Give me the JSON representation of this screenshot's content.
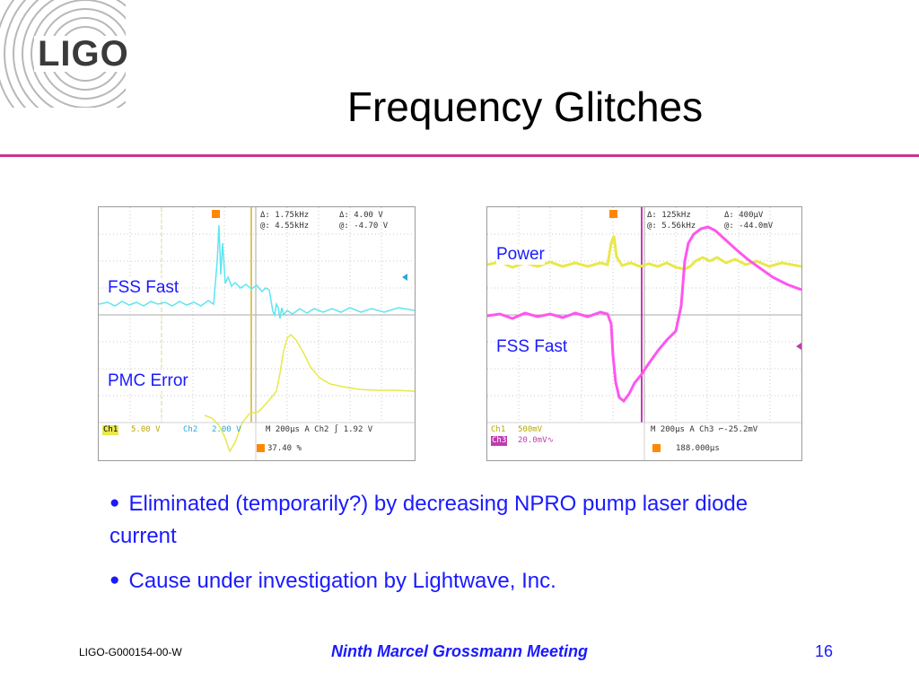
{
  "logo": {
    "text": "LIGO",
    "icon": "ligo-arcs-logo"
  },
  "title": "Frequency Glitches",
  "colors": {
    "title_rule": "#cc3388",
    "body_text": "#1a1aff",
    "ch1": "#e8e84a",
    "ch2": "#5ee6f0",
    "ch3": "#ff55ee"
  },
  "scope_left": {
    "labels": {
      "top_trace": "FSS Fast",
      "bottom_trace": "PMC Error"
    },
    "readout": {
      "r1a": "Δ:  1.75kHz",
      "r1b": "Δ:   4.00 V",
      "r2a": "@:  4.55kHz",
      "r2b": "@:  -4.70 V"
    },
    "status": {
      "ch1_tag": "Ch1",
      "ch1_scale": "5.00 V",
      "ch2_tag": "Ch2",
      "ch2_scale": "2.00 V",
      "timebase": "M 200µs  A  Ch2  ∫    1.92 V",
      "trigger_pos": "37.40 %"
    }
  },
  "scope_right": {
    "labels": {
      "top_trace": "Power",
      "bottom_trace": "FSS Fast"
    },
    "readout": {
      "r1a": "Δ:  125kHz",
      "r1b": "Δ:   400µV",
      "r2a": "@:  5.56kHz",
      "r2b": "@:  -44.0mV"
    },
    "status": {
      "ch1_tag": "Ch1",
      "ch1_scale": "500mV",
      "ch3_tag": "Ch3",
      "ch3_scale": "20.0mV∿",
      "timebase": "M 200µs  A  Ch3  ⌐-25.2mV",
      "trigger_pos": "188.000µs"
    }
  },
  "bullets": [
    "Eliminated (temporarily?) by decreasing NPRO pump laser diode current",
    "Cause under investigation by Lightwave, Inc."
  ],
  "footer": {
    "doc_id": "LIGO-G000154-00-W",
    "meeting": "Ninth Marcel Grossmann Meeting",
    "page": "16"
  }
}
